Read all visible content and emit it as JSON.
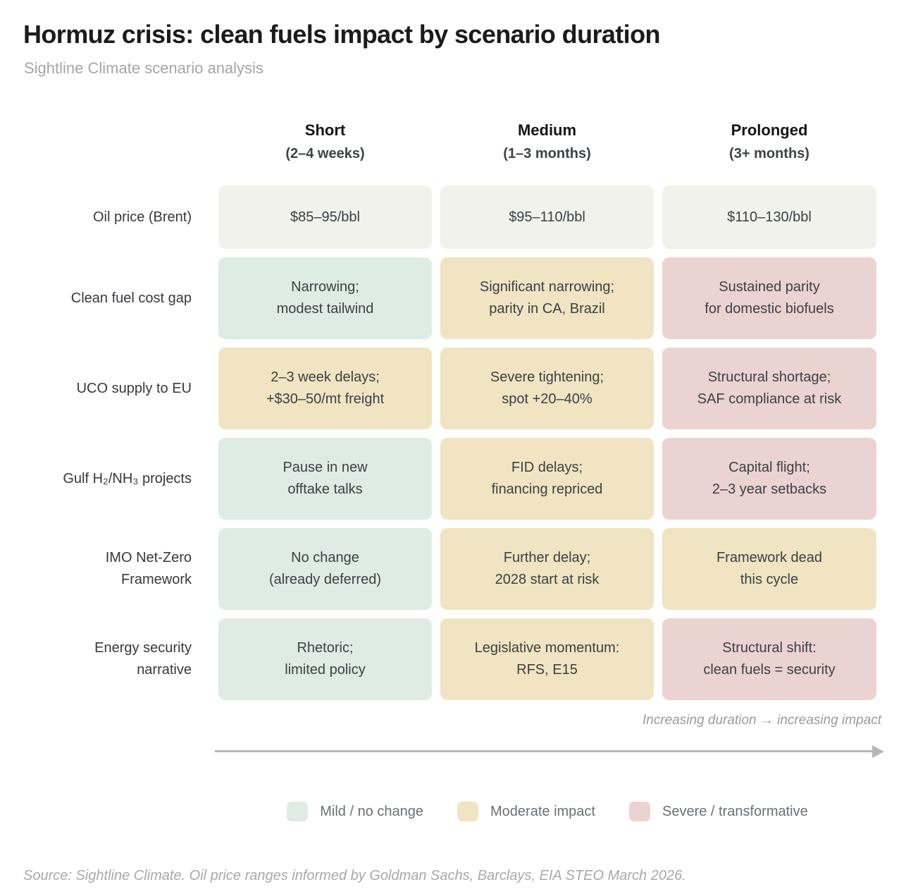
{
  "chart_data": {
    "type": "table",
    "title": "Hormuz crisis: clean fuels impact by scenario duration",
    "subtitle": "Sightline Climate scenario analysis",
    "columns": [
      {
        "label": "Short",
        "sublabel": "(2–4 weeks)"
      },
      {
        "label": "Medium",
        "sublabel": "(1–3 months)"
      },
      {
        "label": "Prolonged",
        "sublabel": "(3+ months)"
      }
    ],
    "rows": [
      {
        "label": "Oil price (Brent)",
        "cells": [
          {
            "text": "$85–95/bbl",
            "severity": "neutral"
          },
          {
            "text": "$95–110/bbl",
            "severity": "neutral"
          },
          {
            "text": "$110–130/bbl",
            "severity": "neutral"
          }
        ]
      },
      {
        "label": "Clean fuel cost gap",
        "cells": [
          {
            "text": "Narrowing;\nmodest tailwind",
            "severity": "mild"
          },
          {
            "text": "Significant narrowing;\nparity in CA, Brazil",
            "severity": "moderate"
          },
          {
            "text": "Sustained parity\nfor domestic biofuels",
            "severity": "severe"
          }
        ]
      },
      {
        "label": "UCO supply to EU",
        "cells": [
          {
            "text": "2–3 week delays;\n+$30–50/mt freight",
            "severity": "moderate"
          },
          {
            "text": "Severe tightening;\nspot +20–40%",
            "severity": "moderate"
          },
          {
            "text": "Structural shortage;\nSAF compliance at risk",
            "severity": "severe"
          }
        ]
      },
      {
        "label": "Gulf H₂/NH₃ projects",
        "cells": [
          {
            "text": "Pause in new\nofftake talks",
            "severity": "mild"
          },
          {
            "text": "FID delays;\nfinancing repriced",
            "severity": "moderate"
          },
          {
            "text": "Capital flight;\n2–3 year setbacks",
            "severity": "severe"
          }
        ]
      },
      {
        "label": "IMO Net-Zero\nFramework",
        "cells": [
          {
            "text": "No change\n(already deferred)",
            "severity": "mild"
          },
          {
            "text": "Further delay;\n2028 start at risk",
            "severity": "moderate"
          },
          {
            "text": "Framework dead\nthis cycle",
            "severity": "moderate"
          }
        ]
      },
      {
        "label": "Energy security\nnarrative",
        "cells": [
          {
            "text": "Rhetoric;\nlimited policy",
            "severity": "mild"
          },
          {
            "text": "Legislative momentum:\nRFS, E15",
            "severity": "moderate"
          },
          {
            "text": "Structural shift:\nclean fuels = security",
            "severity": "severe"
          }
        ]
      }
    ],
    "severity_colors": {
      "neutral": "#f1f2ec",
      "mild": "#dfebe5",
      "moderate": "#f0e4c2",
      "severe": "#ebd3d1"
    },
    "annotation": "Increasing duration → increasing impact",
    "legend": [
      {
        "label": "Mild / no change",
        "severity": "mild",
        "color": "#dfebe5"
      },
      {
        "label": "Moderate impact",
        "severity": "moderate",
        "color": "#f0e4c2"
      },
      {
        "label": "Severe / transformative",
        "severity": "severe",
        "color": "#ebd3d1"
      }
    ],
    "source": "Source: Sightline Climate. Oil price ranges informed by Goldman Sachs, Barclays, EIA STEO March 2026."
  }
}
